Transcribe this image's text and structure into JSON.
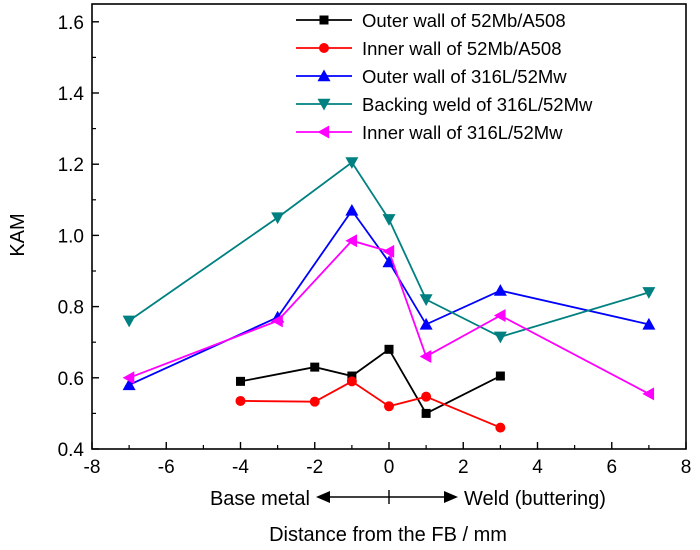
{
  "chart_data": {
    "type": "line",
    "title": "",
    "xlabel": "Distance from the FB / mm",
    "ylabel": "KAM",
    "xlim": [
      -8,
      8
    ],
    "ylim": [
      0.4,
      1.65
    ],
    "xticks": [
      "-8",
      "-6",
      "-4",
      "-2",
      "0",
      "2",
      "4",
      "6",
      "8"
    ],
    "yticks": [
      "0.4",
      "0.6",
      "0.8",
      "1.0",
      "1.2",
      "1.4",
      "1.6"
    ],
    "legend_position": "top-right",
    "grid": false,
    "region_labels": {
      "left": "Base metal",
      "right": "Weld (buttering)"
    },
    "series": [
      {
        "name": "Outer wall of 52Mb/A508",
        "color": "#000000",
        "marker": "square",
        "x": [
          -4,
          -2,
          -1,
          0,
          1,
          3
        ],
        "y": [
          0.59,
          0.63,
          0.605,
          0.68,
          0.5,
          0.605
        ]
      },
      {
        "name": "Inner wall of 52Mb/A508",
        "color": "#ff0000",
        "marker": "circle",
        "x": [
          -4,
          -2,
          -1,
          0,
          1,
          3
        ],
        "y": [
          0.535,
          0.533,
          0.59,
          0.52,
          0.547,
          0.46
        ]
      },
      {
        "name": "Outer wall of 316L/52Mw",
        "color": "#0000ff",
        "marker": "triangle-up",
        "x": [
          -7,
          -3,
          -1,
          0,
          1,
          3,
          7
        ],
        "y": [
          0.58,
          0.77,
          1.07,
          0.925,
          0.75,
          0.845,
          0.75
        ]
      },
      {
        "name": "Backing weld of 316L/52Mw",
        "color": "#008080",
        "marker": "triangle-down",
        "x": [
          -7,
          -3,
          -1,
          0,
          1,
          3,
          7
        ],
        "y": [
          0.76,
          1.05,
          1.205,
          1.045,
          0.82,
          0.715,
          0.84
        ]
      },
      {
        "name": "Inner wall of 316L/52Mw",
        "color": "#ff00ff",
        "marker": "triangle-left",
        "x": [
          -7,
          -3,
          -1,
          0,
          1,
          3,
          7
        ],
        "y": [
          0.6,
          0.76,
          0.985,
          0.955,
          0.66,
          0.775,
          0.555
        ]
      }
    ]
  }
}
